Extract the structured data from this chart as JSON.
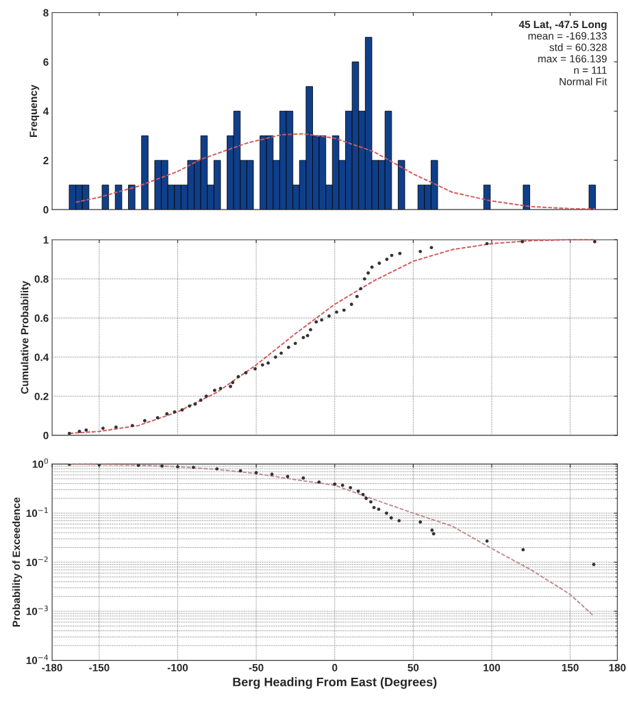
{
  "chart_data": [
    {
      "type": "histogram",
      "ylabel": "Frequency",
      "color": "#103f8a",
      "bins": [
        -169.13,
        -164.94,
        -160.75,
        -156.56,
        -152.37,
        -148.18,
        -143.99,
        -139.8,
        -135.61,
        -131.42,
        -127.22,
        -123.03,
        -118.84,
        -114.65,
        -110.46,
        -106.27,
        -102.08,
        -97.89,
        -93.7,
        -89.51,
        -85.31,
        -81.12,
        -76.93,
        -72.74,
        -68.55,
        -64.36,
        -60.17,
        -55.98,
        -51.79,
        -47.6,
        -43.41,
        -39.22,
        -35.02,
        -30.83,
        -26.64,
        -22.45,
        -18.26,
        -14.07,
        -9.88,
        -5.69,
        -1.5,
        2.69,
        6.89,
        11.08,
        15.27,
        19.46,
        23.65,
        27.84,
        32.03,
        36.22,
        40.41,
        44.6,
        48.79,
        52.98,
        57.18,
        61.37,
        65.56,
        69.75,
        73.94,
        78.13,
        82.32,
        86.51,
        90.7,
        94.89,
        99.09,
        103.28,
        107.47,
        111.66,
        115.85,
        120.04,
        124.23,
        128.42,
        132.61,
        136.8,
        140.99,
        145.19,
        149.38,
        153.57,
        157.76,
        161.95,
        166.14
      ],
      "values": [
        1,
        1,
        1,
        0,
        0,
        1,
        0,
        1,
        0,
        1,
        0,
        3,
        0,
        2,
        2,
        1,
        1,
        1,
        2,
        2,
        3,
        1,
        2,
        0,
        3,
        4,
        2,
        2,
        0,
        3,
        3,
        2,
        4,
        4,
        1,
        2,
        5,
        3,
        3,
        1,
        3,
        2,
        4,
        6,
        4,
        7,
        2,
        2,
        4,
        0,
        2,
        0,
        0,
        1,
        1,
        2,
        0,
        0,
        0,
        0,
        0,
        0,
        0,
        1,
        0,
        0,
        0,
        0,
        0,
        1,
        0,
        0,
        0,
        0,
        0,
        0,
        0,
        0,
        0,
        1
      ],
      "series": [
        {
          "type": "line",
          "color": "#d05a5a",
          "line_style": "dashed",
          "x": [
            -165,
            -150,
            -125,
            -100,
            -85,
            -56,
            -34,
            -20,
            0,
            25,
            50,
            75,
            100,
            125,
            150,
            166
          ],
          "values": [
            0.3,
            0.5,
            0.95,
            1.55,
            2.05,
            2.7,
            3.04,
            3.08,
            2.9,
            2.35,
            1.45,
            0.7,
            0.35,
            0.12,
            0.04,
            0.02
          ]
        }
      ],
      "xlim": [
        -180,
        180
      ],
      "xticks": [
        -150,
        -100,
        -50,
        0,
        50,
        100,
        150
      ],
      "ylim": [
        0,
        8
      ],
      "yticks": [
        0,
        2,
        4,
        6,
        8
      ],
      "tick_labels": "y",
      "grid": false,
      "annotations": [
        "45 Lat, -47.5 Long",
        "mean = -169.133",
        "std = 60.328",
        "max = 166.139",
        "n = 111",
        "Normal Fit"
      ]
    },
    {
      "type": "scatter",
      "ylabel": "Cumulative Probability",
      "series": [
        {
          "type": "scatter",
          "color": "#333333",
          "marker": "circle",
          "x": [
            -169,
            -162.6,
            -158.3,
            -147.6,
            -139.3,
            -128.9,
            -121,
            -112.8,
            -106.9,
            -102,
            -97.2,
            -92.5,
            -88.9,
            -85.3,
            -81.8,
            -76.5,
            -72.7,
            -66.4,
            -65,
            -61.4,
            -56.6,
            -50.7,
            -46,
            -42.4,
            -37.7,
            -34.1,
            -29.4,
            -25.1,
            -20,
            -17.3,
            -15.4,
            -11.8,
            -8.3,
            -3.6,
            1.2,
            5.9,
            10.7,
            14.2,
            16.6,
            19,
            21.3,
            23.7,
            28.4,
            33.2,
            36.3,
            41.5,
            54.5,
            61.6,
            97,
            119.5,
            165.6
          ],
          "values": [
            0.01,
            0.02,
            0.027,
            0.036,
            0.042,
            0.05,
            0.075,
            0.09,
            0.11,
            0.12,
            0.13,
            0.15,
            0.16,
            0.18,
            0.2,
            0.23,
            0.24,
            0.25,
            0.27,
            0.3,
            0.32,
            0.34,
            0.36,
            0.37,
            0.4,
            0.42,
            0.45,
            0.47,
            0.5,
            0.51,
            0.54,
            0.58,
            0.59,
            0.61,
            0.63,
            0.64,
            0.67,
            0.71,
            0.75,
            0.8,
            0.83,
            0.86,
            0.88,
            0.9,
            0.92,
            0.93,
            0.94,
            0.96,
            0.98,
            0.99,
            0.99
          ]
        },
        {
          "type": "line",
          "color": "#d05a5a",
          "line_style": "dashed",
          "x": [
            -169,
            -150,
            -125,
            -100,
            -75,
            -50,
            -25,
            0,
            25,
            50,
            75,
            100,
            125,
            150,
            166
          ],
          "values": [
            0.01,
            0.02,
            0.05,
            0.12,
            0.22,
            0.36,
            0.52,
            0.67,
            0.79,
            0.89,
            0.95,
            0.98,
            0.995,
            1.0,
            1.0
          ]
        }
      ],
      "xlim": [
        -180,
        180
      ],
      "xticks": [
        -150,
        -100,
        -50,
        0,
        50,
        100,
        150
      ],
      "ylim": [
        0,
        1
      ],
      "yticks": [
        0,
        0.2,
        0.4,
        0.6,
        0.8,
        1
      ],
      "tick_labels": "y",
      "grid": true
    },
    {
      "type": "scatter",
      "ylabel": "Probability of Exceedence",
      "xlabel": "Berg Heading From East (Degrees)",
      "log": "y",
      "series": [
        {
          "type": "scatter",
          "color": "#333333",
          "marker": "circle",
          "x": [
            -169,
            -150,
            -125,
            -110,
            -100,
            -90,
            -75,
            -60,
            -50,
            -40,
            -30,
            -20,
            -10,
            0,
            5,
            10,
            15,
            18,
            20,
            23,
            25,
            28,
            33,
            36,
            41,
            54.5,
            62,
            63,
            97,
            120,
            165
          ],
          "values": [
            0.99,
            0.97,
            0.94,
            0.91,
            0.88,
            0.86,
            0.8,
            0.73,
            0.67,
            0.62,
            0.56,
            0.52,
            0.43,
            0.39,
            0.37,
            0.33,
            0.28,
            0.24,
            0.2,
            0.17,
            0.13,
            0.12,
            0.1,
            0.08,
            0.07,
            0.066,
            0.045,
            0.038,
            0.027,
            0.018,
            0.009
          ]
        },
        {
          "type": "line",
          "color": "#c08c8c",
          "line_style": "dashed",
          "x": [
            -169,
            -150,
            -125,
            -100,
            -75,
            -50,
            -25,
            0,
            25,
            50,
            75,
            100,
            125,
            150,
            165
          ],
          "values": [
            0.99,
            0.98,
            0.95,
            0.88,
            0.78,
            0.64,
            0.48,
            0.37,
            0.19,
            0.1,
            0.054,
            0.019,
            0.007,
            0.0022,
            0.0008
          ]
        }
      ],
      "xlim": [
        -180,
        180
      ],
      "xticks": [
        -180,
        -150,
        -100,
        -50,
        0,
        50,
        100,
        150,
        180
      ],
      "ylim": [
        0.0001,
        1
      ],
      "yticks": [
        {
          "value": 0.0001,
          "label": "10$^{−4}$"
        },
        {
          "value": 0.001,
          "label": "10$^{−3}$"
        },
        {
          "value": 0.01,
          "label": "10$^{−2}$"
        },
        {
          "value": 0.1,
          "label": "10$^{−1}$"
        },
        {
          "value": 1,
          "label": "10$^{0}$"
        }
      ],
      "grid": true
    }
  ]
}
